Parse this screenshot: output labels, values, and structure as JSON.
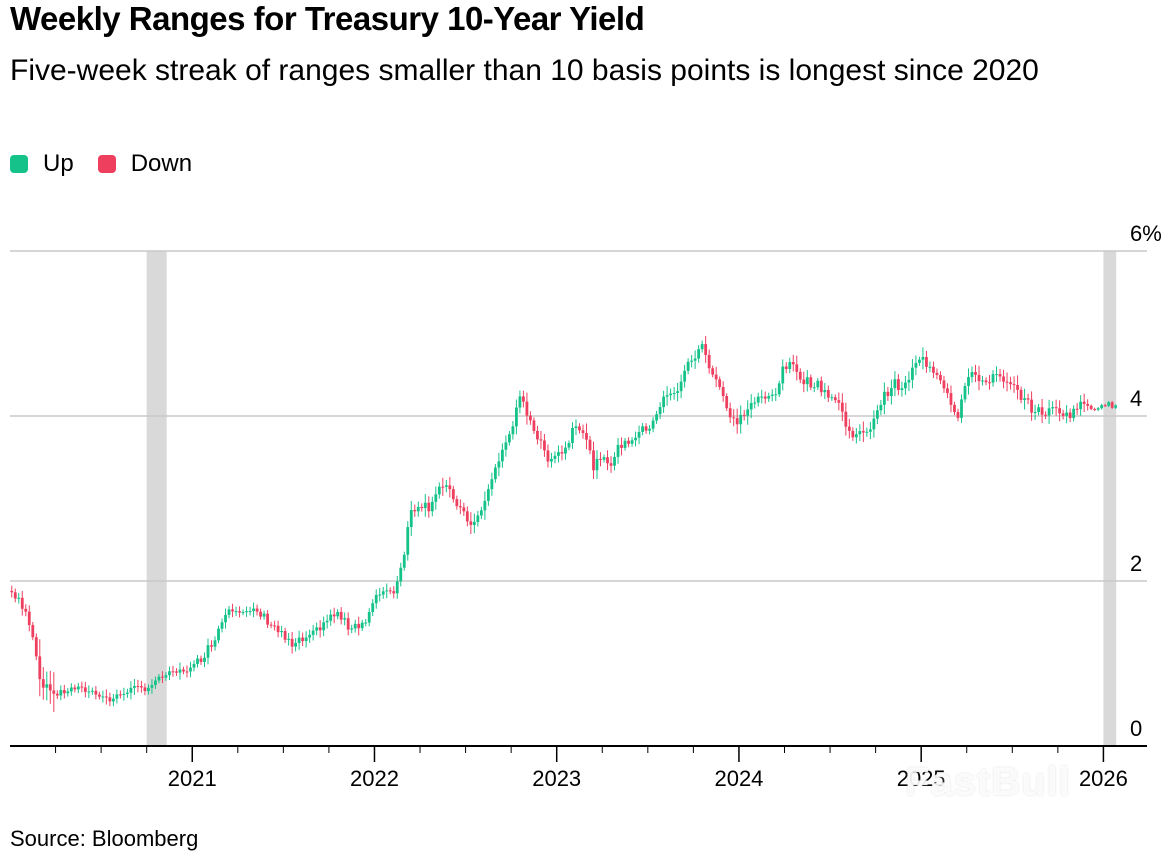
{
  "header": {
    "title": "Weekly Ranges for Treasury 10-Year Yield",
    "subtitle": "Five-week streak of ranges smaller than 10 basis points is longest since 2020"
  },
  "legend": [
    {
      "label": "Up",
      "color": "#14c28a"
    },
    {
      "label": "Down",
      "color": "#ee3f5f"
    }
  ],
  "source": "Source: Bloomberg",
  "watermark": "FastBull",
  "chart_data": {
    "type": "candlestick",
    "title": "Weekly Ranges for Treasury 10-Year Yield",
    "subtitle": "Five-week streak of ranges smaller than 10 basis points is longest since 2020",
    "ylabel": "",
    "xlabel": "",
    "ylim": [
      0,
      6
    ],
    "xlim": [
      2020.0,
      2026.08
    ],
    "y_ticks": [
      {
        "value": 0,
        "label": "0"
      },
      {
        "value": 2,
        "label": "2"
      },
      {
        "value": 4,
        "label": "4"
      },
      {
        "value": 6,
        "label": "6%"
      }
    ],
    "x_ticks": [
      {
        "value": 2021,
        "label": "2021"
      },
      {
        "value": 2022,
        "label": "2022"
      },
      {
        "value": 2023,
        "label": "2023"
      },
      {
        "value": 2024,
        "label": "2024"
      },
      {
        "value": 2025,
        "label": "2025"
      },
      {
        "value": 2026,
        "label": "2026"
      }
    ],
    "grid": true,
    "legend_position": "top-left",
    "up_color": "#14c28a",
    "down_color": "#ee3f5f",
    "shaded_periods": [
      [
        2020.75,
        2020.86
      ],
      [
        2026.0,
        2026.07
      ]
    ],
    "yield_path": [
      [
        2020.0,
        1.88
      ],
      [
        2020.05,
        1.8
      ],
      [
        2020.1,
        1.55
      ],
      [
        2020.14,
        1.15
      ],
      [
        2020.17,
        0.7
      ],
      [
        2020.2,
        0.72
      ],
      [
        2020.25,
        0.62
      ],
      [
        2020.3,
        0.66
      ],
      [
        2020.35,
        0.7
      ],
      [
        2020.4,
        0.68
      ],
      [
        2020.45,
        0.66
      ],
      [
        2020.5,
        0.62
      ],
      [
        2020.55,
        0.55
      ],
      [
        2020.6,
        0.62
      ],
      [
        2020.65,
        0.68
      ],
      [
        2020.7,
        0.7
      ],
      [
        2020.75,
        0.7
      ],
      [
        2020.8,
        0.78
      ],
      [
        2020.85,
        0.86
      ],
      [
        2020.9,
        0.88
      ],
      [
        2020.95,
        0.92
      ],
      [
        2021.0,
        0.94
      ],
      [
        2021.05,
        1.08
      ],
      [
        2021.1,
        1.22
      ],
      [
        2021.15,
        1.45
      ],
      [
        2021.2,
        1.7
      ],
      [
        2021.25,
        1.68
      ],
      [
        2021.3,
        1.6
      ],
      [
        2021.35,
        1.62
      ],
      [
        2021.4,
        1.55
      ],
      [
        2021.45,
        1.45
      ],
      [
        2021.5,
        1.32
      ],
      [
        2021.55,
        1.2
      ],
      [
        2021.6,
        1.28
      ],
      [
        2021.65,
        1.3
      ],
      [
        2021.7,
        1.45
      ],
      [
        2021.75,
        1.55
      ],
      [
        2021.8,
        1.6
      ],
      [
        2021.85,
        1.45
      ],
      [
        2021.9,
        1.48
      ],
      [
        2021.95,
        1.5
      ],
      [
        2022.0,
        1.75
      ],
      [
        2022.05,
        1.92
      ],
      [
        2022.1,
        1.85
      ],
      [
        2022.15,
        2.2
      ],
      [
        2022.2,
        2.85
      ],
      [
        2022.25,
        2.95
      ],
      [
        2022.3,
        2.9
      ],
      [
        2022.35,
        3.15
      ],
      [
        2022.4,
        3.1
      ],
      [
        2022.45,
        2.95
      ],
      [
        2022.5,
        2.75
      ],
      [
        2022.55,
        2.7
      ],
      [
        2022.6,
        2.9
      ],
      [
        2022.65,
        3.3
      ],
      [
        2022.7,
        3.55
      ],
      [
        2022.75,
        3.85
      ],
      [
        2022.8,
        4.2
      ],
      [
        2022.85,
        4.0
      ],
      [
        2022.9,
        3.7
      ],
      [
        2022.95,
        3.5
      ],
      [
        2023.0,
        3.55
      ],
      [
        2023.05,
        3.6
      ],
      [
        2023.1,
        3.95
      ],
      [
        2023.15,
        3.8
      ],
      [
        2023.2,
        3.4
      ],
      [
        2023.25,
        3.45
      ],
      [
        2023.3,
        3.45
      ],
      [
        2023.35,
        3.65
      ],
      [
        2023.4,
        3.7
      ],
      [
        2023.45,
        3.8
      ],
      [
        2023.5,
        3.85
      ],
      [
        2023.55,
        4.05
      ],
      [
        2023.6,
        4.25
      ],
      [
        2023.65,
        4.25
      ],
      [
        2023.7,
        4.55
      ],
      [
        2023.75,
        4.7
      ],
      [
        2023.8,
        4.85
      ],
      [
        2023.85,
        4.55
      ],
      [
        2023.9,
        4.35
      ],
      [
        2023.95,
        3.95
      ],
      [
        2024.0,
        3.95
      ],
      [
        2024.05,
        4.1
      ],
      [
        2024.1,
        4.2
      ],
      [
        2024.15,
        4.2
      ],
      [
        2024.2,
        4.3
      ],
      [
        2024.25,
        4.6
      ],
      [
        2024.3,
        4.6
      ],
      [
        2024.35,
        4.45
      ],
      [
        2024.4,
        4.4
      ],
      [
        2024.45,
        4.35
      ],
      [
        2024.5,
        4.25
      ],
      [
        2024.55,
        4.15
      ],
      [
        2024.6,
        3.8
      ],
      [
        2024.65,
        3.8
      ],
      [
        2024.7,
        3.75
      ],
      [
        2024.75,
        4.05
      ],
      [
        2024.8,
        4.25
      ],
      [
        2024.85,
        4.4
      ],
      [
        2024.9,
        4.3
      ],
      [
        2024.95,
        4.55
      ],
      [
        2025.0,
        4.7
      ],
      [
        2025.05,
        4.6
      ],
      [
        2025.1,
        4.5
      ],
      [
        2025.15,
        4.25
      ],
      [
        2025.2,
        4.0
      ],
      [
        2025.25,
        4.45
      ],
      [
        2025.3,
        4.5
      ],
      [
        2025.35,
        4.4
      ],
      [
        2025.4,
        4.5
      ],
      [
        2025.45,
        4.4
      ],
      [
        2025.5,
        4.35
      ],
      [
        2025.55,
        4.25
      ],
      [
        2025.6,
        4.1
      ],
      [
        2025.65,
        4.05
      ],
      [
        2025.7,
        4.05
      ],
      [
        2025.75,
        4.1
      ],
      [
        2025.8,
        4.0
      ],
      [
        2025.85,
        4.1
      ],
      [
        2025.9,
        4.15
      ],
      [
        2025.95,
        4.12
      ],
      [
        2026.0,
        4.15
      ],
      [
        2026.05,
        4.16
      ]
    ]
  }
}
